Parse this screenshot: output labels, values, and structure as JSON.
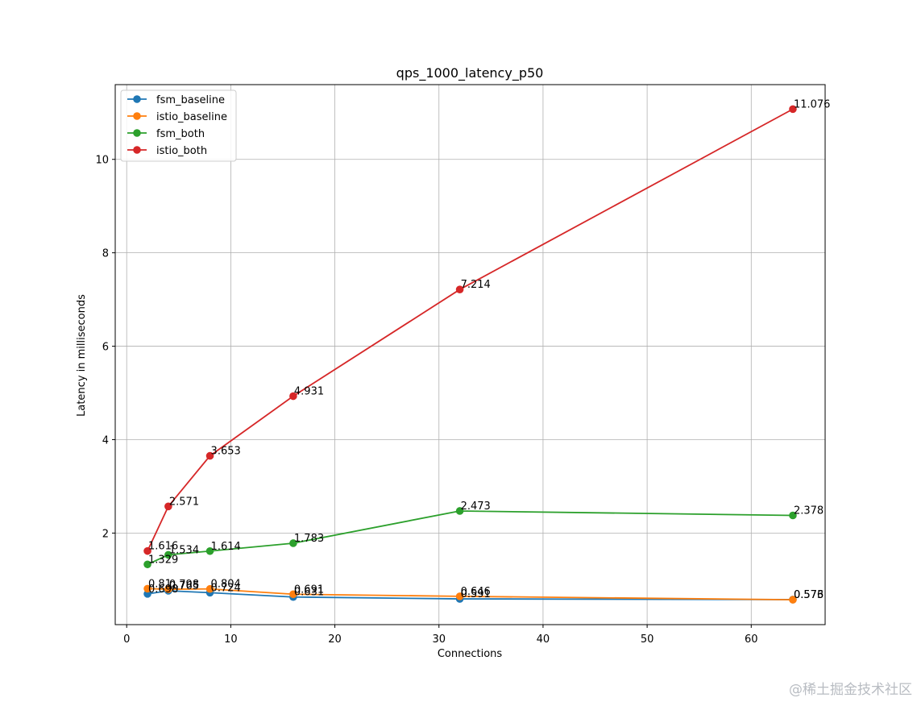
{
  "chart_data": {
    "type": "line",
    "title": "qps_1000_latency_p50",
    "xlabel": "Connections",
    "ylabel": "Latency in milliseconds",
    "x": [
      2,
      4,
      8,
      16,
      32,
      64
    ],
    "xlim": [
      -1.1,
      67.1
    ],
    "ylim": [
      0.04,
      11.6
    ],
    "xticks": [
      0,
      10,
      20,
      30,
      40,
      50,
      60
    ],
    "yticks": [
      2,
      4,
      6,
      8,
      10
    ],
    "grid": true,
    "legend_position": "top-left",
    "series": [
      {
        "name": "fsm_baseline",
        "color": "#1f77b4",
        "values": [
          0.698,
          0.765,
          0.724,
          0.631,
          0.591,
          0.576
        ],
        "labels": [
          "0.698",
          "0.765",
          "0.724",
          "0.631",
          "0.591",
          "0.576"
        ]
      },
      {
        "name": "istio_baseline",
        "color": "#ff7f0e",
        "values": [
          0.81,
          0.798,
          0.804,
          0.691,
          0.646,
          0.573
        ],
        "labels": [
          "0.81",
          "0.798",
          "0.804",
          "0.691",
          "0.646",
          "0.573"
        ]
      },
      {
        "name": "fsm_both",
        "color": "#2ca02c",
        "values": [
          1.329,
          1.534,
          1.614,
          1.783,
          2.473,
          2.378
        ],
        "labels": [
          "1.329",
          "1.534",
          "1.614",
          "1.783",
          "2.473",
          "2.378"
        ]
      },
      {
        "name": "istio_both",
        "color": "#d62728",
        "values": [
          1.616,
          2.571,
          3.653,
          4.931,
          7.214,
          11.076
        ],
        "labels": [
          "1.616",
          "2.571",
          "3.653",
          "4.931",
          "7.214",
          "11.076"
        ]
      }
    ]
  },
  "watermark": "@稀土掘金技术社区"
}
